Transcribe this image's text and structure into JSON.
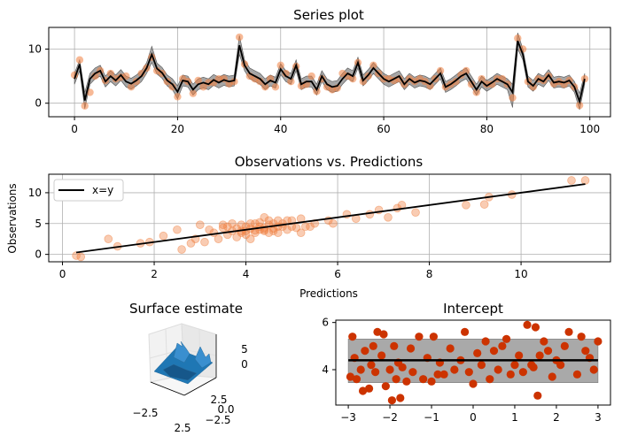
{
  "chart_data": [
    {
      "type": "line",
      "title": "Series plot",
      "xlim": [
        -5,
        104
      ],
      "ylim": [
        -2.5,
        14
      ],
      "xticks": [
        0,
        20,
        40,
        60,
        80,
        100
      ],
      "yticks": [
        0,
        10
      ],
      "grid": true,
      "band_color": "#808080",
      "line_color": "#000000",
      "point_color": "#f08040",
      "x": [
        0,
        1,
        2,
        3,
        4,
        5,
        6,
        7,
        8,
        9,
        10,
        11,
        12,
        13,
        14,
        15,
        16,
        17,
        18,
        19,
        20,
        21,
        22,
        23,
        24,
        25,
        26,
        27,
        28,
        29,
        30,
        31,
        32,
        33,
        34,
        35,
        36,
        37,
        38,
        39,
        40,
        41,
        42,
        43,
        44,
        45,
        46,
        47,
        48,
        49,
        50,
        51,
        52,
        53,
        54,
        55,
        56,
        57,
        58,
        59,
        60,
        61,
        62,
        63,
        64,
        65,
        66,
        67,
        68,
        69,
        70,
        71,
        72,
        73,
        74,
        75,
        76,
        77,
        78,
        79,
        80,
        81,
        82,
        83,
        84,
        85,
        86,
        87,
        88,
        89,
        90,
        91,
        92,
        93,
        94,
        95,
        96,
        97,
        98,
        99
      ],
      "mean": [
        4.5,
        7.2,
        0.5,
        4.5,
        5.5,
        6.0,
        4.0,
        5.0,
        4.2,
        5.2,
        4.0,
        3.6,
        4.2,
        5.0,
        6.5,
        9.0,
        6.4,
        5.6,
        4.2,
        3.5,
        2.1,
        4.2,
        4.0,
        2.5,
        3.5,
        3.8,
        3.5,
        4.3,
        3.8,
        4.3,
        4.0,
        4.2,
        10.7,
        7.0,
        5.5,
        5.0,
        4.5,
        3.5,
        4.2,
        3.8,
        6.3,
        5.0,
        4.5,
        7.0,
        3.5,
        4.0,
        4.0,
        2.5,
        5.0,
        3.5,
        3.0,
        3.2,
        4.5,
        5.5,
        5.0,
        7.5,
        4.2,
        5.2,
        6.5,
        5.5,
        4.5,
        4.0,
        4.5,
        5.0,
        3.5,
        4.5,
        3.8,
        4.2,
        4.0,
        3.5,
        4.5,
        5.5,
        3.0,
        3.5,
        4.2,
        5.0,
        5.5,
        4.0,
        2.5,
        4.0,
        3.2,
        3.8,
        4.5,
        4.0,
        3.5,
        2.0,
        11.5,
        9.0,
        4.0,
        3.2,
        4.5,
        4.0,
        5.2,
        3.8,
        4.0,
        3.8,
        4.2,
        3.0,
        0.3,
        4.5
      ],
      "upper": [
        5.5,
        8.0,
        2.0,
        5.5,
        6.5,
        7.0,
        5.0,
        6.0,
        5.2,
        6.2,
        5.0,
        4.6,
        5.2,
        6.0,
        7.5,
        10.5,
        7.4,
        6.6,
        5.2,
        4.5,
        3.2,
        5.2,
        5.0,
        3.5,
        4.5,
        4.8,
        4.5,
        5.3,
        4.8,
        5.3,
        5.0,
        5.2,
        12.5,
        8.0,
        6.5,
        6.0,
        5.5,
        4.5,
        5.2,
        4.8,
        7.3,
        6.0,
        5.5,
        8.0,
        4.5,
        5.0,
        5.0,
        3.5,
        6.0,
        4.5,
        4.0,
        4.2,
        5.5,
        6.5,
        6.0,
        8.5,
        5.2,
        6.2,
        7.5,
        6.5,
        5.5,
        5.0,
        5.5,
        6.0,
        4.5,
        5.5,
        4.8,
        5.2,
        5.0,
        4.5,
        5.5,
        6.5,
        4.0,
        4.5,
        5.2,
        6.0,
        6.5,
        5.0,
        3.5,
        5.0,
        4.2,
        4.8,
        5.5,
        5.0,
        4.5,
        3.5,
        13.0,
        10.0,
        5.0,
        4.2,
        5.5,
        5.0,
        6.2,
        4.8,
        5.0,
        4.8,
        5.2,
        4.0,
        1.8,
        5.5
      ],
      "lower": [
        3.5,
        6.0,
        -1.0,
        3.5,
        4.5,
        5.0,
        3.0,
        4.0,
        3.2,
        4.2,
        3.0,
        2.6,
        3.2,
        4.0,
        5.5,
        7.5,
        5.4,
        4.6,
        3.2,
        2.5,
        0.8,
        3.2,
        3.0,
        1.5,
        2.5,
        2.8,
        2.5,
        3.3,
        2.8,
        3.3,
        3.0,
        3.2,
        9.0,
        6.0,
        4.5,
        4.0,
        3.5,
        2.5,
        3.2,
        2.8,
        5.3,
        4.0,
        3.5,
        6.0,
        2.5,
        3.0,
        3.0,
        1.5,
        4.0,
        2.5,
        2.0,
        2.2,
        3.5,
        4.5,
        4.0,
        6.5,
        3.2,
        4.2,
        5.5,
        4.5,
        3.5,
        3.0,
        3.5,
        4.0,
        2.5,
        3.5,
        2.8,
        3.2,
        3.0,
        2.5,
        3.5,
        4.5,
        2.0,
        2.5,
        3.2,
        4.0,
        4.5,
        3.0,
        1.5,
        3.0,
        2.2,
        2.8,
        3.5,
        3.0,
        2.5,
        -0.8,
        10.0,
        8.0,
        3.0,
        2.2,
        3.5,
        3.0,
        4.2,
        2.8,
        3.0,
        2.8,
        3.2,
        2.0,
        -1.2,
        3.5
      ],
      "observed": [
        5.2,
        8.0,
        -0.5,
        2.0,
        5.0,
        6.0,
        4.2,
        5.5,
        4.5,
        4.8,
        5.0,
        3.0,
        4.0,
        5.5,
        6.5,
        8.5,
        6.0,
        5.5,
        4.0,
        3.0,
        1.2,
        4.5,
        4.0,
        1.8,
        4.2,
        3.0,
        3.8,
        3.8,
        4.5,
        4.5,
        3.6,
        4.0,
        12.2,
        7.2,
        5.0,
        4.5,
        4.0,
        3.0,
        4.5,
        3.0,
        7.0,
        5.5,
        4.0,
        6.8,
        3.2,
        3.5,
        5.0,
        2.2,
        4.5,
        3.0,
        2.5,
        2.8,
        5.5,
        5.0,
        4.5,
        7.5,
        4.0,
        5.0,
        7.0,
        5.5,
        4.5,
        4.5,
        4.2,
        4.5,
        3.5,
        4.5,
        4.0,
        4.5,
        4.0,
        3.2,
        4.5,
        6.0,
        3.0,
        3.5,
        4.0,
        5.2,
        6.0,
        3.5,
        2.0,
        4.5,
        3.5,
        3.5,
        4.5,
        4.5,
        3.5,
        1.0,
        12.0,
        10.0,
        4.0,
        3.0,
        4.5,
        4.2,
        5.0,
        3.6,
        4.0,
        3.5,
        4.2,
        3.0,
        -0.4,
        4.5
      ]
    },
    {
      "type": "scatter",
      "title": "Observations vs. Predictions",
      "xlabel": "Predictions",
      "ylabel": "Observations",
      "xlim": [
        -0.3,
        11.95
      ],
      "ylim": [
        -1.2,
        13
      ],
      "xticks": [
        0,
        2,
        4,
        6,
        8,
        10
      ],
      "yticks": [
        0,
        5,
        10
      ],
      "grid": true,
      "legend": {
        "label": "x=y",
        "placement": "top-left"
      },
      "point_color": "#f08040",
      "reference_line": [
        [
          0.3,
          0.3
        ],
        [
          11.4,
          11.4
        ]
      ],
      "x": [
        0.3,
        0.4,
        1.0,
        1.2,
        1.7,
        1.9,
        2.2,
        2.6,
        2.8,
        2.9,
        3.1,
        3.2,
        3.3,
        3.4,
        3.5,
        3.5,
        3.6,
        3.6,
        3.7,
        3.7,
        3.8,
        3.8,
        3.9,
        3.9,
        4.0,
        4.0,
        4.0,
        4.1,
        4.1,
        4.1,
        4.2,
        4.2,
        4.2,
        4.3,
        4.3,
        4.3,
        4.4,
        4.4,
        4.4,
        4.5,
        4.5,
        4.5,
        4.6,
        4.6,
        4.6,
        4.7,
        4.7,
        4.8,
        4.8,
        4.9,
        4.9,
        5.0,
        5.0,
        5.1,
        5.2,
        5.2,
        5.3,
        5.4,
        5.5,
        5.8,
        5.9,
        6.2,
        6.4,
        6.7,
        6.9,
        7.1,
        7.3,
        7.4,
        7.7,
        8.8,
        9.2,
        9.3,
        9.8,
        11.1,
        11.4,
        2.5,
        3.0,
        3.9,
        4.4,
        4.7
      ],
      "y": [
        -0.2,
        -0.4,
        2.5,
        1.3,
        1.8,
        2.0,
        3.0,
        0.8,
        1.8,
        2.5,
        2.0,
        4.0,
        3.5,
        2.5,
        4.3,
        4.8,
        3.2,
        4.5,
        3.8,
        5.0,
        2.8,
        4.2,
        3.5,
        4.8,
        3.2,
        3.8,
        4.5,
        2.5,
        4.2,
        5.0,
        3.5,
        3.9,
        5.0,
        4.0,
        4.5,
        5.2,
        3.8,
        4.3,
        6.0,
        3.5,
        4.8,
        5.5,
        3.8,
        4.2,
        5.0,
        4.5,
        5.5,
        4.5,
        5.0,
        4.0,
        5.5,
        4.5,
        5.5,
        4.3,
        3.5,
        5.8,
        4.5,
        4.5,
        5.0,
        5.5,
        5.0,
        6.5,
        5.8,
        6.5,
        7.2,
        6.0,
        7.5,
        8.0,
        6.8,
        8.0,
        8.1,
        9.3,
        9.7,
        12.0,
        12.0,
        4.0,
        4.8,
        3.8,
        4.0,
        3.5
      ]
    },
    {
      "type": "surface",
      "title": "Surface estimate",
      "xticks": [
        "−2.5",
        "2.5"
      ],
      "yticks": [
        "2.5",
        "0.0",
        "−2.5"
      ],
      "zticks": [
        "5",
        "0"
      ],
      "surface_color": "#1f77b4"
    },
    {
      "type": "scatter",
      "title": "Intercept",
      "xlim": [
        -3.3,
        3.3
      ],
      "ylim": [
        2.5,
        6.1
      ],
      "xticks": [
        -3,
        -2,
        -1,
        0,
        1,
        2,
        3
      ],
      "yticks": [
        4,
        6
      ],
      "grid": false,
      "intercept": 4.4,
      "band": [
        3.45,
        5.3
      ],
      "band_color": "#a9a9a9",
      "point_color": "#cc3300",
      "x": [
        -2.95,
        -2.9,
        -2.85,
        -2.8,
        -2.7,
        -2.6,
        -2.5,
        -2.45,
        -2.4,
        -2.35,
        -2.3,
        -2.2,
        -2.15,
        -2.1,
        -2.0,
        -1.95,
        -1.9,
        -1.85,
        -1.8,
        -1.75,
        -1.7,
        -1.6,
        -1.5,
        -1.45,
        -1.3,
        -1.2,
        -1.1,
        -1.0,
        -0.95,
        -0.8,
        -0.7,
        -0.55,
        -0.45,
        -0.3,
        -0.2,
        -0.1,
        0.0,
        0.1,
        0.2,
        0.3,
        0.4,
        0.5,
        0.6,
        0.7,
        0.8,
        0.9,
        1.0,
        1.1,
        1.2,
        1.3,
        1.4,
        1.5,
        1.55,
        1.6,
        1.7,
        1.8,
        1.9,
        2.0,
        2.1,
        2.2,
        2.3,
        2.5,
        2.6,
        2.7,
        2.8,
        2.9,
        3.0,
        -2.65,
        -0.85,
        1.45
      ],
      "y": [
        3.7,
        5.4,
        4.5,
        3.6,
        4.0,
        4.8,
        3.2,
        4.2,
        5.0,
        3.9,
        5.6,
        4.6,
        5.5,
        3.3,
        4.0,
        2.7,
        5.0,
        3.6,
        4.3,
        2.8,
        4.1,
        3.5,
        4.9,
        3.9,
        5.4,
        3.6,
        4.5,
        3.5,
        5.4,
        4.3,
        3.8,
        4.9,
        4.0,
        4.4,
        5.6,
        3.9,
        3.4,
        4.7,
        4.2,
        5.2,
        3.6,
        4.8,
        4.0,
        5.0,
        5.3,
        3.8,
        4.2,
        4.6,
        3.9,
        5.9,
        4.2,
        5.8,
        2.9,
        4.6,
        5.2,
        4.8,
        3.7,
        4.4,
        4.2,
        5.0,
        5.6,
        3.8,
        5.4,
        4.8,
        4.5,
        4.0,
        5.2,
        3.1,
        3.8,
        4.1
      ]
    }
  ]
}
